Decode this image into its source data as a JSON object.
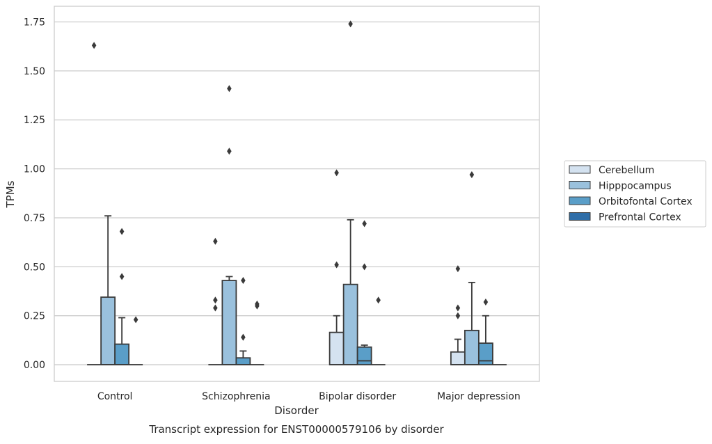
{
  "chart_data": {
    "type": "box",
    "title": "Transcript expression for ENST00000579106 by disorder",
    "xlabel": "Disorder",
    "ylabel": "TPMs",
    "categories": [
      "Control",
      "Schizophrenia",
      "Bipolar disorder",
      "Major depression"
    ],
    "ylim": [
      -0.085,
      1.83
    ],
    "yticks": [
      0.0,
      0.25,
      0.5,
      0.75,
      1.0,
      1.25,
      1.5,
      1.75
    ],
    "ytick_labels": [
      "0.00",
      "0.25",
      "0.50",
      "0.75",
      "1.00",
      "1.25",
      "1.50",
      "1.75"
    ],
    "grid": "horizontal",
    "legend_position": "right",
    "series": [
      {
        "name": "Cerebellum",
        "color": "#d4e2f0",
        "boxes": [
          {
            "q1": 0,
            "median": 0,
            "q3": 0,
            "whisker_low": 0,
            "whisker_high": 0,
            "outliers": [
              1.63
            ]
          },
          {
            "q1": 0,
            "median": 0,
            "q3": 0,
            "whisker_low": 0,
            "whisker_high": 0,
            "outliers": [
              0.63,
              0.33,
              0.29
            ]
          },
          {
            "q1": 0,
            "median": 0,
            "q3": 0.165,
            "whisker_low": 0,
            "whisker_high": 0.25,
            "outliers": [
              0.98,
              0.51
            ]
          },
          {
            "q1": 0,
            "median": 0,
            "q3": 0.065,
            "whisker_low": 0,
            "whisker_high": 0.13,
            "outliers": [
              0.49,
              0.29,
              0.25
            ]
          }
        ]
      },
      {
        "name": "Hipppocampus",
        "color": "#9ac1dd",
        "boxes": [
          {
            "q1": 0,
            "median": 0,
            "q3": 0.345,
            "whisker_low": 0,
            "whisker_high": 0.76,
            "outliers": []
          },
          {
            "q1": 0,
            "median": 0,
            "q3": 0.43,
            "whisker_low": 0,
            "whisker_high": 0.45,
            "outliers": [
              1.41,
              1.09
            ]
          },
          {
            "q1": 0,
            "median": 0,
            "q3": 0.41,
            "whisker_low": 0,
            "whisker_high": 0.74,
            "outliers": [
              1.74
            ]
          },
          {
            "q1": 0,
            "median": 0,
            "q3": 0.175,
            "whisker_low": 0,
            "whisker_high": 0.42,
            "outliers": [
              0.97
            ]
          }
        ]
      },
      {
        "name": "Orbitofontal Cortex",
        "color": "#5a9ec8",
        "boxes": [
          {
            "q1": 0,
            "median": 0,
            "q3": 0.105,
            "whisker_low": 0,
            "whisker_high": 0.24,
            "outliers": [
              0.68,
              0.45
            ]
          },
          {
            "q1": 0,
            "median": 0,
            "q3": 0.035,
            "whisker_low": 0,
            "whisker_high": 0.07,
            "outliers": [
              0.43,
              0.14
            ]
          },
          {
            "q1": 0,
            "median": 0.02,
            "q3": 0.09,
            "whisker_low": 0,
            "whisker_high": 0.1,
            "outliers": [
              0.72,
              0.5
            ]
          },
          {
            "q1": 0,
            "median": 0.02,
            "q3": 0.11,
            "whisker_low": 0,
            "whisker_high": 0.25,
            "outliers": [
              0.32
            ]
          }
        ]
      },
      {
        "name": "Prefrontal Cortex",
        "color": "#2f6ea8",
        "boxes": [
          {
            "q1": 0,
            "median": 0,
            "q3": 0,
            "whisker_low": 0,
            "whisker_high": 0,
            "outliers": [
              0.23
            ]
          },
          {
            "q1": 0,
            "median": 0,
            "q3": 0,
            "whisker_low": 0,
            "whisker_high": 0,
            "outliers": [
              0.31,
              0.3
            ]
          },
          {
            "q1": 0,
            "median": 0,
            "q3": 0,
            "whisker_low": 0,
            "whisker_high": 0,
            "outliers": [
              0.33
            ]
          },
          {
            "q1": 0,
            "median": 0,
            "q3": 0,
            "whisker_low": 0,
            "whisker_high": 0,
            "outliers": []
          }
        ]
      }
    ]
  }
}
